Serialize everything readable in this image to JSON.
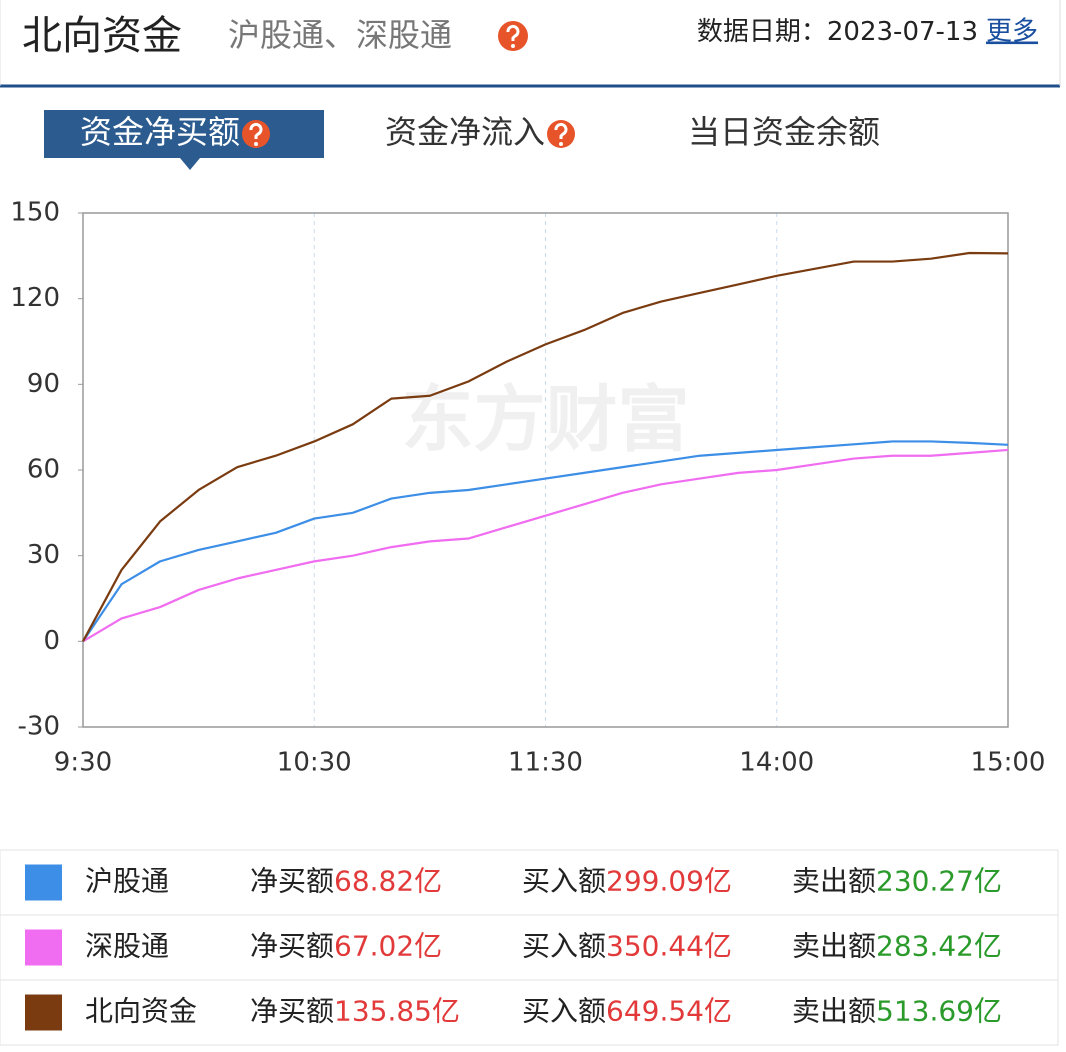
{
  "header": {
    "title": "北向资金",
    "subtitle": "沪股通、深股通",
    "date_label": "数据日期：",
    "date": "2023-07-13",
    "more": "更多"
  },
  "tabs": [
    {
      "label": "资金净买额",
      "active": true,
      "help": true
    },
    {
      "label": "资金净流入",
      "active": false,
      "help": true
    },
    {
      "label": "当日资金余额",
      "active": false,
      "help": false
    }
  ],
  "chart_data": {
    "type": "line",
    "watermark": "东方财富",
    "x": [
      0,
      10,
      20,
      30,
      40,
      50,
      60,
      70,
      80,
      90,
      100,
      110,
      120,
      130,
      140,
      150,
      160,
      170,
      180,
      190,
      200,
      210,
      220,
      230,
      240
    ],
    "xlim": [
      0,
      240
    ],
    "xticks": [
      {
        "value": 0,
        "label": "9:30"
      },
      {
        "value": 60,
        "label": "10:30"
      },
      {
        "value": 120,
        "label": "11:30"
      },
      {
        "value": 180,
        "label": "14:00"
      },
      {
        "value": 240,
        "label": "15:00"
      }
    ],
    "ylim": [
      -30,
      150
    ],
    "yticks": [
      -30,
      0,
      30,
      60,
      90,
      120,
      150
    ],
    "grid": true,
    "series": [
      {
        "name": "沪股通",
        "color": "#3c8ee6",
        "values": [
          0,
          20,
          28,
          32,
          35,
          38,
          43,
          45,
          50,
          52,
          53,
          55,
          57,
          59,
          61,
          63,
          65,
          66,
          67,
          68,
          69,
          70,
          70,
          69.5,
          68.82
        ]
      },
      {
        "name": "深股通",
        "color": "#f06cf0",
        "values": [
          0,
          8,
          12,
          18,
          22,
          25,
          28,
          30,
          33,
          35,
          36,
          40,
          44,
          48,
          52,
          55,
          57,
          59,
          60,
          62,
          64,
          65,
          65,
          66,
          67.02
        ]
      },
      {
        "name": "北向资金",
        "color": "#7a3b10",
        "values": [
          0,
          25,
          42,
          53,
          61,
          65,
          70,
          76,
          85,
          86,
          91,
          98,
          104,
          109,
          115,
          119,
          122,
          125,
          128,
          130.5,
          133,
          133,
          134,
          136,
          135.85
        ]
      }
    ]
  },
  "table": {
    "rows": [
      {
        "net_label": "净买额",
        "net": "68.82亿",
        "buy_label": "买入额",
        "buy": "299.09亿",
        "sell_label": "卖出额",
        "sell": "230.27亿"
      },
      {
        "net_label": "净买额",
        "net": "67.02亿",
        "buy_label": "买入额",
        "buy": "350.44亿",
        "sell_label": "卖出额",
        "sell": "283.42亿"
      },
      {
        "net_label": "净买额",
        "net": "135.85亿",
        "buy_label": "买入额",
        "buy": "649.54亿",
        "sell_label": "卖出额",
        "sell": "513.69亿"
      }
    ]
  }
}
